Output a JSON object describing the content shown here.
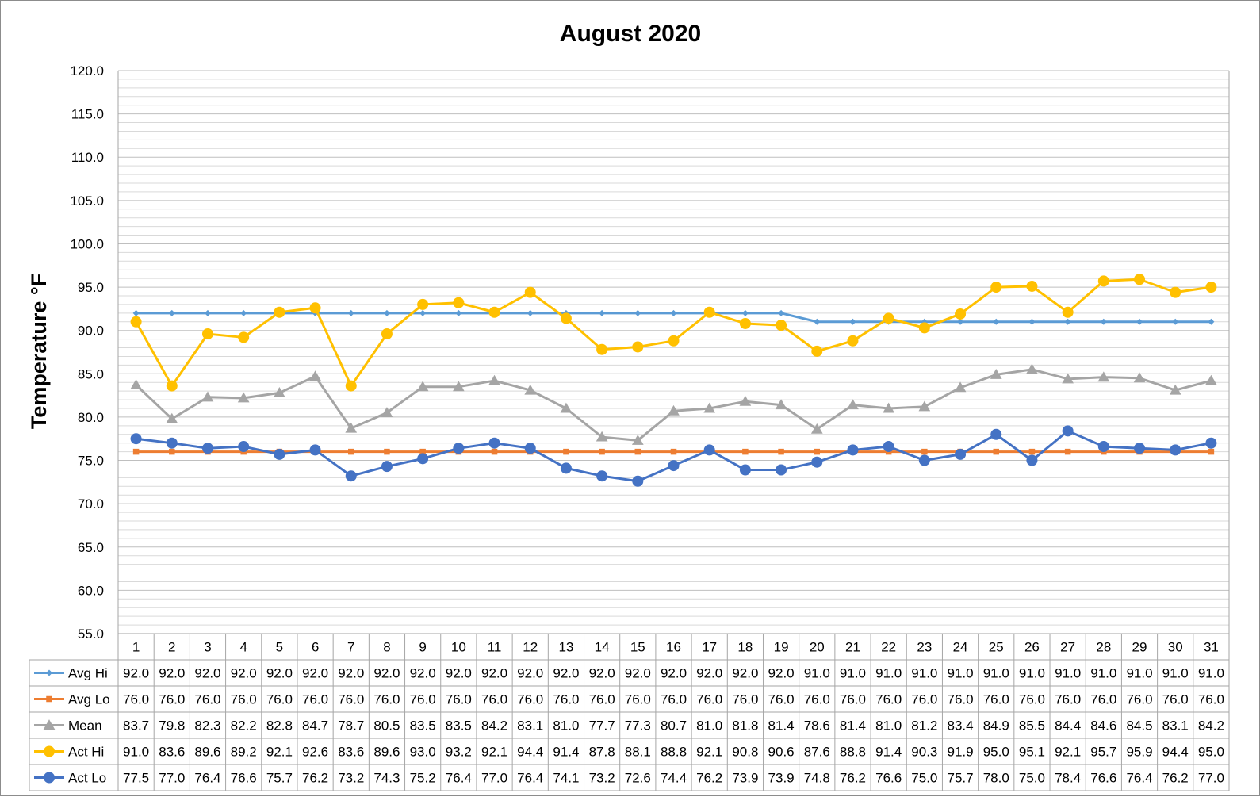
{
  "chart_data": {
    "type": "line",
    "title": "August 2020",
    "ylabel": "Temperature °F",
    "xlabel": "",
    "ylim": [
      55,
      120
    ],
    "y_ticks": [
      "55.0",
      "60.0",
      "65.0",
      "70.0",
      "75.0",
      "80.0",
      "85.0",
      "90.0",
      "95.0",
      "100.0",
      "105.0",
      "110.0",
      "115.0",
      "120.0"
    ],
    "grid": true,
    "legend": "data-table",
    "categories": [
      "1",
      "2",
      "3",
      "4",
      "5",
      "6",
      "7",
      "8",
      "9",
      "10",
      "11",
      "12",
      "13",
      "14",
      "15",
      "16",
      "17",
      "18",
      "19",
      "20",
      "21",
      "22",
      "23",
      "24",
      "25",
      "26",
      "27",
      "28",
      "29",
      "30",
      "31"
    ],
    "series": [
      {
        "name": "Avg Hi",
        "color": "#5b9bd5",
        "marker": "diamond",
        "values": [
          92.0,
          92.0,
          92.0,
          92.0,
          92.0,
          92.0,
          92.0,
          92.0,
          92.0,
          92.0,
          92.0,
          92.0,
          92.0,
          92.0,
          92.0,
          92.0,
          92.0,
          92.0,
          92.0,
          91.0,
          91.0,
          91.0,
          91.0,
          91.0,
          91.0,
          91.0,
          91.0,
          91.0,
          91.0,
          91.0,
          91.0
        ]
      },
      {
        "name": "Avg Lo",
        "color": "#ed7d31",
        "marker": "square",
        "values": [
          76.0,
          76.0,
          76.0,
          76.0,
          76.0,
          76.0,
          76.0,
          76.0,
          76.0,
          76.0,
          76.0,
          76.0,
          76.0,
          76.0,
          76.0,
          76.0,
          76.0,
          76.0,
          76.0,
          76.0,
          76.0,
          76.0,
          76.0,
          76.0,
          76.0,
          76.0,
          76.0,
          76.0,
          76.0,
          76.0,
          76.0
        ]
      },
      {
        "name": "Mean",
        "color": "#a5a5a5",
        "marker": "triangle",
        "values": [
          83.7,
          79.8,
          82.3,
          82.2,
          82.8,
          84.7,
          78.7,
          80.5,
          83.5,
          83.5,
          84.2,
          83.1,
          81.0,
          77.7,
          77.3,
          80.7,
          81.0,
          81.8,
          81.4,
          78.6,
          81.4,
          81.0,
          81.2,
          83.4,
          84.9,
          85.5,
          84.4,
          84.6,
          84.5,
          83.1,
          84.2
        ]
      },
      {
        "name": "Act Hi",
        "color": "#ffc000",
        "marker": "circle",
        "values": [
          91.0,
          83.6,
          89.6,
          89.2,
          92.1,
          92.6,
          83.6,
          89.6,
          93.0,
          93.2,
          92.1,
          94.4,
          91.4,
          87.8,
          88.1,
          88.8,
          92.1,
          90.8,
          90.6,
          87.6,
          88.8,
          91.4,
          90.3,
          91.9,
          95.0,
          95.1,
          92.1,
          95.7,
          95.9,
          94.4,
          95.0
        ]
      },
      {
        "name": "Act Lo",
        "color": "#4472c4",
        "marker": "circle",
        "values": [
          77.5,
          77.0,
          76.4,
          76.6,
          75.7,
          76.2,
          73.2,
          74.3,
          75.2,
          76.4,
          77.0,
          76.4,
          74.1,
          73.2,
          72.6,
          74.4,
          76.2,
          73.9,
          73.9,
          74.8,
          76.2,
          76.6,
          75.0,
          75.7,
          78.0,
          75.0,
          78.4,
          76.6,
          76.4,
          76.2,
          77.0
        ]
      }
    ]
  }
}
